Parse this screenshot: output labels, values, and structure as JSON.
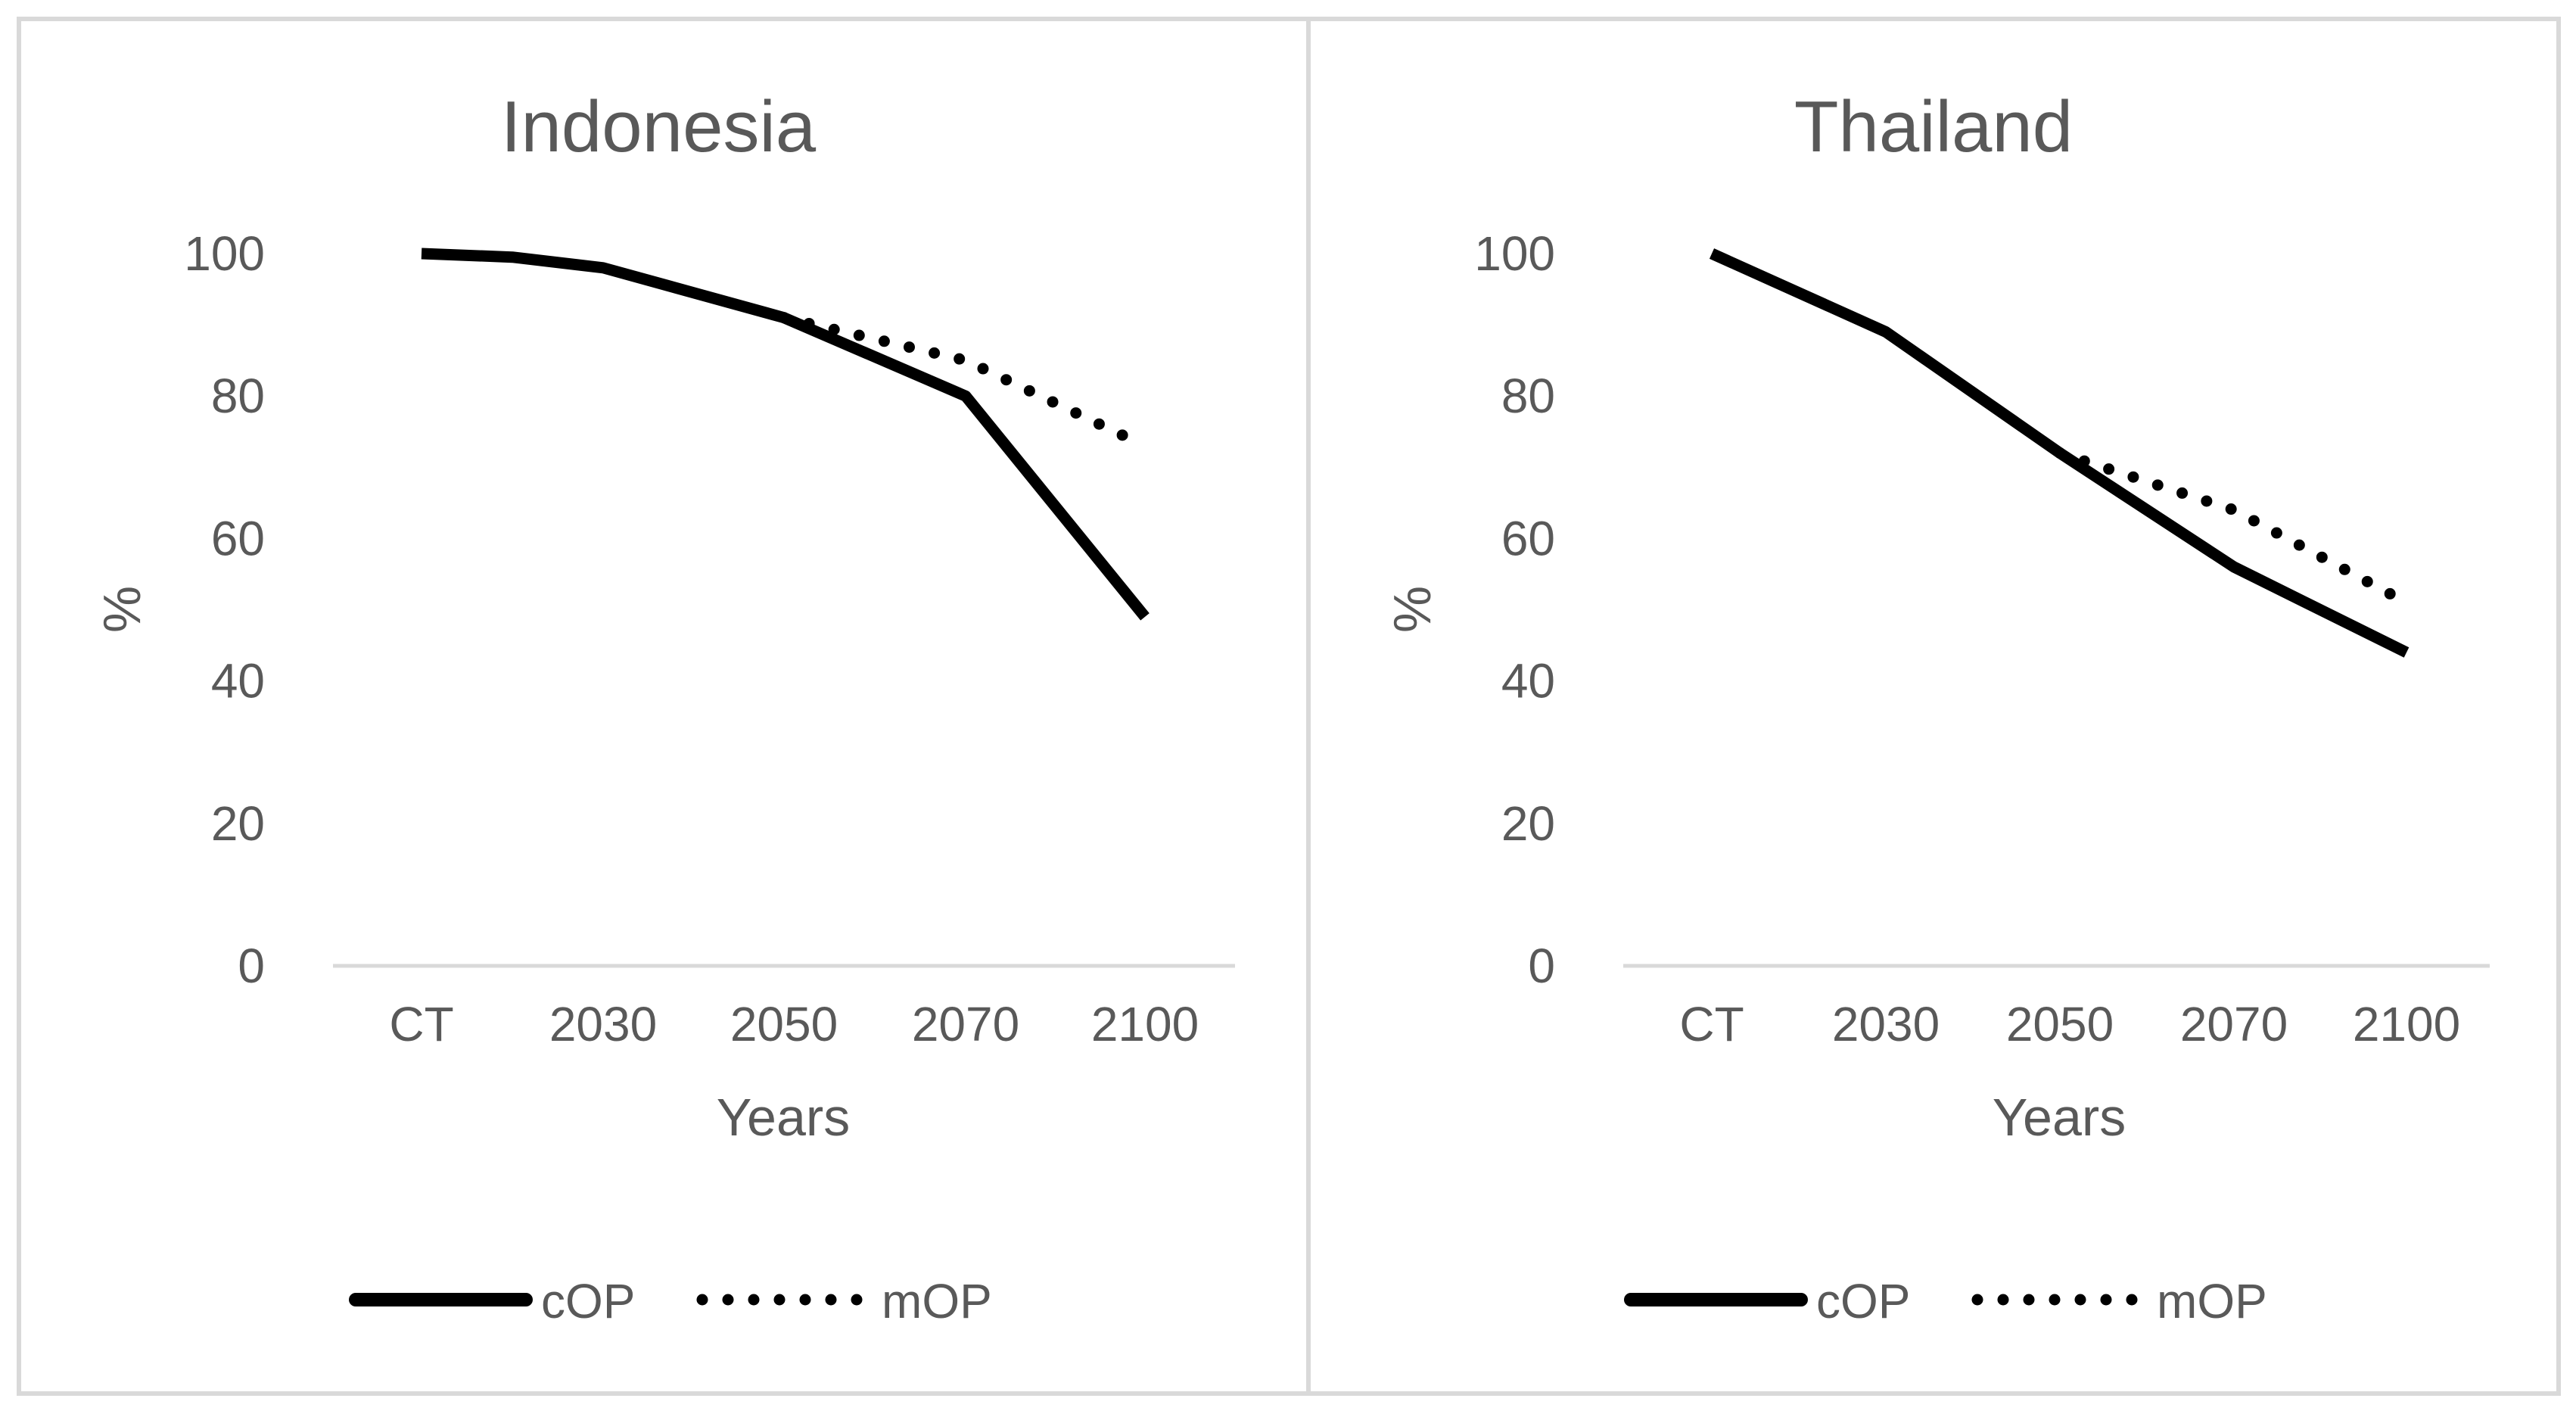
{
  "chart_data": [
    {
      "type": "line",
      "title": "Indonesia",
      "xlabel": "Years",
      "ylabel": "%",
      "categories": [
        "CT",
        "2030",
        "2050",
        "2070",
        "2100"
      ],
      "ylim": [
        0,
        100
      ],
      "yticks": [
        "0",
        "20",
        "40",
        "60",
        "80",
        "100"
      ],
      "grid": false,
      "legend_position": "bottom",
      "series": [
        {
          "name": "cOP",
          "style": "solid",
          "color": "#000000",
          "x": [
            0,
            0.5,
            1,
            2,
            3,
            4
          ],
          "values": [
            100,
            99.5,
            98,
            91,
            80,
            49
          ]
        },
        {
          "name": "mOP",
          "style": "dotted",
          "color": "#000000",
          "x": [
            2,
            3,
            4
          ],
          "values": [
            91,
            85,
            73
          ]
        }
      ]
    },
    {
      "type": "line",
      "title": "Thailand",
      "xlabel": "Years",
      "ylabel": "%",
      "categories": [
        "CT",
        "2030",
        "2050",
        "2070",
        "2100"
      ],
      "ylim": [
        0,
        100
      ],
      "yticks": [
        "0",
        "20",
        "40",
        "60",
        "80",
        "100"
      ],
      "grid": false,
      "legend_position": "bottom",
      "series": [
        {
          "name": "cOP",
          "style": "solid",
          "color": "#000000",
          "x": [
            0,
            1,
            2,
            3,
            4
          ],
          "values": [
            100,
            89,
            72,
            56,
            44
          ]
        },
        {
          "name": "mOP",
          "style": "dotted",
          "color": "#000000",
          "x": [
            2,
            3,
            4
          ],
          "values": [
            72,
            64,
            51
          ]
        }
      ]
    }
  ]
}
